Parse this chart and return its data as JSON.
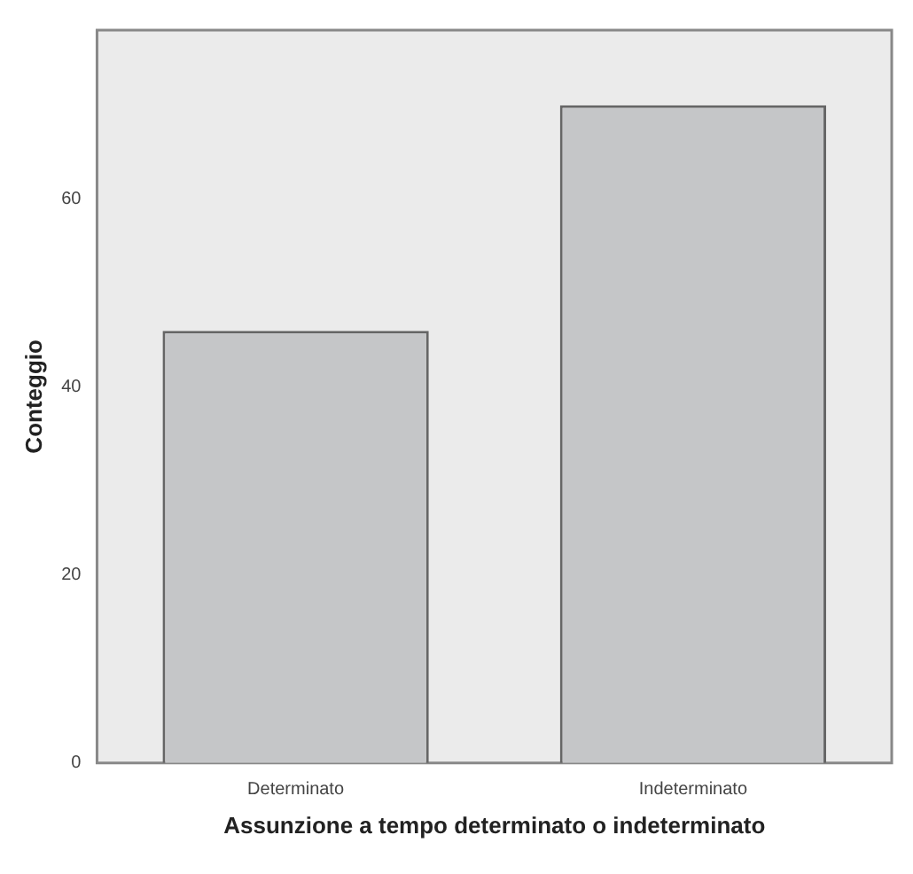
{
  "chart_data": {
    "type": "bar",
    "xlabel": "Assunzione a tempo determinato o indeterminato",
    "ylabel": "Conteggio",
    "categories": [
      "Determinato",
      "Indeterminato"
    ],
    "values": [
      46,
      70
    ],
    "color": "#c5c6c8",
    "ylim": [
      0,
      78
    ],
    "yticks": [
      0,
      20,
      40,
      60
    ],
    "grid": false,
    "legend": false
  }
}
